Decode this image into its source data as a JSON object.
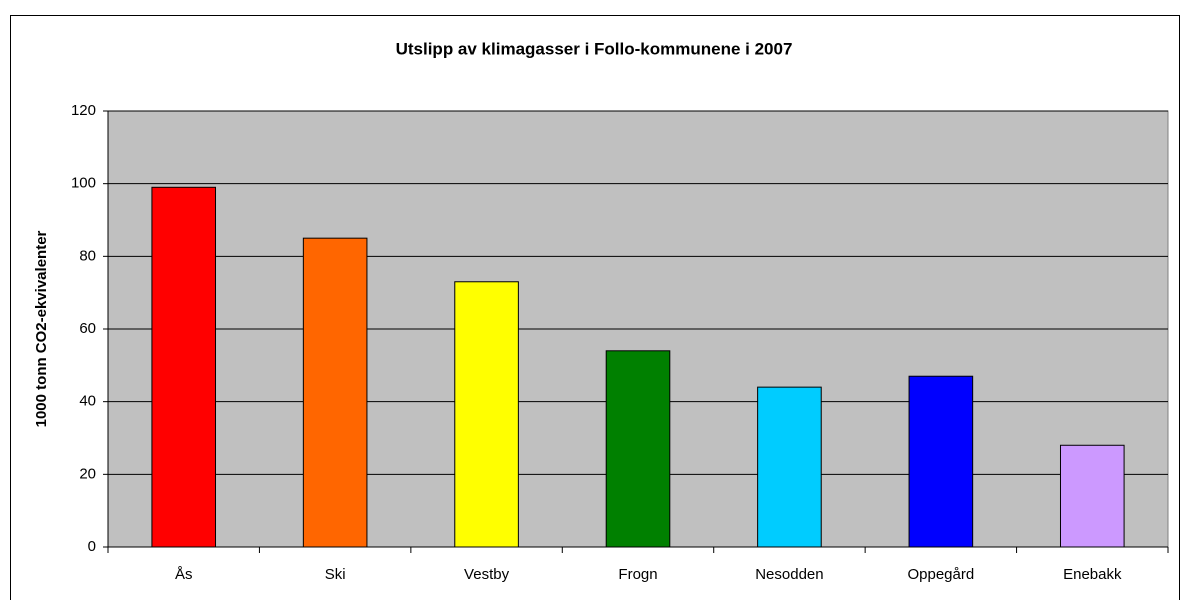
{
  "chart_data": {
    "type": "bar",
    "title": "Utslipp av klimagasser i Follo-kommunene i 2007",
    "y_label": "1000 tonn CO2-ekvivalenter",
    "categories": [
      "Ås",
      "Ski",
      "Vestby",
      "Frogn",
      "Nesodden",
      "Oppegård",
      "Enebakk"
    ],
    "values": [
      99,
      85,
      73,
      54,
      44,
      47,
      28
    ],
    "colors": [
      "#ff0000",
      "#ff6600",
      "#ffff00",
      "#008000",
      "#00ccff",
      "#0000ff",
      "#cc99ff"
    ],
    "ylim": [
      0,
      120
    ],
    "yticks": [
      0,
      20,
      40,
      60,
      80,
      100,
      120
    ],
    "grid": true
  }
}
